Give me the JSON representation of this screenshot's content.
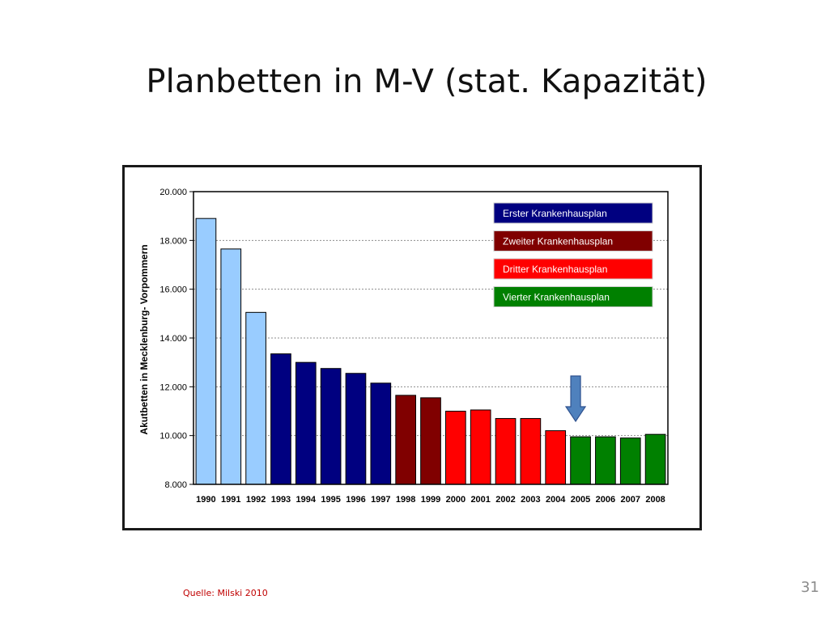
{
  "slide": {
    "title": "Planbetten in M-V (stat. Kapazität)",
    "source": "Quelle: Milski 2010",
    "page_number": "31"
  },
  "colors": {
    "pre_plan": "#99ccff",
    "erster": "#000080",
    "zweiter": "#800000",
    "dritter": "#ff0000",
    "vierter": "#008000",
    "arrow": "#4f81bd"
  },
  "chart_data": {
    "type": "bar",
    "title": "",
    "xlabel": "",
    "ylabel": "Akutbetten in Mecklenburg- Vorpommern",
    "ylim": [
      8000,
      20000
    ],
    "y_ticks": [
      8000,
      10000,
      12000,
      14000,
      16000,
      18000,
      20000
    ],
    "y_tick_labels": [
      "8.000",
      "10.000",
      "12.000",
      "14.000",
      "16.000",
      "18.000",
      "20.000"
    ],
    "grid": "horizontal dashed",
    "categories": [
      "1990",
      "1991",
      "1992",
      "1993",
      "1994",
      "1995",
      "1996",
      "1997",
      "1998",
      "1999",
      "2000",
      "2001",
      "2002",
      "2003",
      "2004",
      "2005",
      "2006",
      "2007",
      "2008"
    ],
    "values": [
      18900,
      17650,
      15050,
      13350,
      13000,
      12750,
      12550,
      12150,
      11650,
      11550,
      11000,
      11050,
      10700,
      10700,
      10200,
      9950,
      9950,
      9900,
      10050
    ],
    "bar_groups": [
      "pre_plan",
      "pre_plan",
      "pre_plan",
      "erster",
      "erster",
      "erster",
      "erster",
      "erster",
      "zweiter",
      "zweiter",
      "dritter",
      "dritter",
      "dritter",
      "dritter",
      "dritter",
      "vierter",
      "vierter",
      "vierter",
      "vierter"
    ],
    "legend": [
      {
        "label": "Erster Krankenhausplan",
        "group": "erster"
      },
      {
        "label": "Zweiter Krankenhausplan",
        "group": "zweiter"
      },
      {
        "label": "Dritter Krankenhausplan",
        "group": "dritter"
      },
      {
        "label": "Vierter Krankenhausplan",
        "group": "vierter"
      }
    ],
    "legend_position": "top-right",
    "arrow_annotation": {
      "category": "2005",
      "direction": "down"
    }
  }
}
